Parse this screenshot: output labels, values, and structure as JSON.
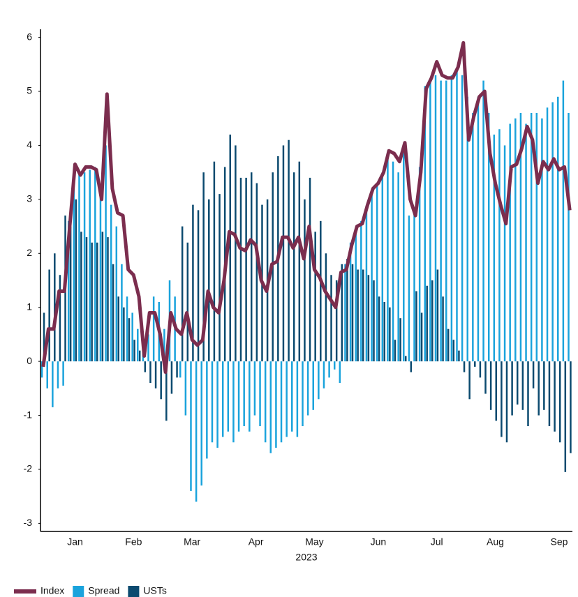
{
  "chart_data": {
    "type": "bar",
    "x_label": "2023",
    "categories": [
      null,
      null,
      null,
      null,
      null,
      null,
      "Jan",
      null,
      null,
      null,
      null,
      null,
      null,
      null,
      null,
      null,
      null,
      "Feb",
      null,
      null,
      null,
      null,
      null,
      null,
      null,
      null,
      null,
      null,
      "Mar",
      null,
      null,
      null,
      null,
      null,
      null,
      null,
      null,
      null,
      null,
      null,
      "Apr",
      null,
      null,
      null,
      null,
      null,
      null,
      null,
      null,
      null,
      null,
      "May",
      null,
      null,
      null,
      null,
      null,
      null,
      null,
      null,
      null,
      null,
      null,
      "Jun",
      null,
      null,
      null,
      null,
      null,
      null,
      null,
      null,
      null,
      null,
      "Jul",
      null,
      null,
      null,
      null,
      null,
      null,
      null,
      null,
      null,
      null,
      "Aug",
      null,
      null,
      null,
      null,
      null,
      null,
      null,
      null,
      null,
      null,
      null,
      "Sep",
      null,
      null
    ],
    "series": [
      {
        "name": "Index",
        "type": "line",
        "color": "#7b2d4e",
        "values": [
          -0.1,
          0.6,
          0.6,
          1.3,
          1.3,
          2.5,
          3.65,
          3.45,
          3.6,
          3.6,
          3.55,
          3.0,
          4.95,
          3.2,
          2.75,
          2.7,
          1.7,
          1.6,
          1.2,
          0.1,
          0.9,
          0.9,
          0.5,
          -0.2,
          0.9,
          0.6,
          0.5,
          0.9,
          0.4,
          0.3,
          0.4,
          1.3,
          1.0,
          0.9,
          1.5,
          2.4,
          2.35,
          2.1,
          2.05,
          2.25,
          2.15,
          1.5,
          1.3,
          1.8,
          1.85,
          2.3,
          2.3,
          2.1,
          2.3,
          1.9,
          2.5,
          1.7,
          1.55,
          1.3,
          1.15,
          1.0,
          1.65,
          1.7,
          2.15,
          2.5,
          2.55,
          2.9,
          3.2,
          3.3,
          3.5,
          3.9,
          3.85,
          3.7,
          4.05,
          3.0,
          2.7,
          3.5,
          5.05,
          5.25,
          5.55,
          5.3,
          5.25,
          5.25,
          5.45,
          5.9,
          4.1,
          4.55,
          4.9,
          5.0,
          3.85,
          3.3,
          2.9,
          2.55,
          3.6,
          3.65,
          3.95,
          4.35,
          4.1,
          3.3,
          3.7,
          3.55,
          3.75,
          3.55,
          3.6,
          2.8
        ]
      },
      {
        "name": "Spread",
        "type": "bar",
        "color": "#1aa3dc",
        "values": [
          -0.3,
          -0.5,
          -0.85,
          -0.5,
          -0.45,
          2.6,
          3.3,
          3.5,
          3.5,
          3.55,
          3.6,
          3.2,
          4.0,
          2.9,
          2.5,
          1.8,
          1.2,
          0.9,
          0.6,
          0.2,
          0.5,
          1.2,
          1.1,
          0.6,
          1.5,
          1.2,
          -0.3,
          -1.0,
          -2.4,
          -2.6,
          -2.3,
          -1.8,
          -1.5,
          -1.6,
          -1.4,
          -1.3,
          -1.5,
          -1.3,
          -1.2,
          -1.3,
          -1.0,
          -1.2,
          -1.5,
          -1.7,
          -1.6,
          -1.5,
          -1.4,
          -1.3,
          -1.4,
          -1.2,
          -1.0,
          -0.9,
          -0.7,
          -0.5,
          -0.3,
          -0.15,
          -0.4,
          1.8,
          2.2,
          2.4,
          2.6,
          2.8,
          3.1,
          3.3,
          3.5,
          3.8,
          3.7,
          3.5,
          4.0,
          2.7,
          2.8,
          3.6,
          5.1,
          5.2,
          5.3,
          5.2,
          5.2,
          5.3,
          5.4,
          5.3,
          4.9,
          4.6,
          4.9,
          5.2,
          4.6,
          4.2,
          4.3,
          4.0,
          4.4,
          4.5,
          4.6,
          4.4,
          4.6,
          4.6,
          4.5,
          4.7,
          4.8,
          4.9,
          5.2,
          4.6
        ]
      },
      {
        "name": "USTs",
        "type": "bar",
        "color": "#0b4a6f",
        "values": [
          0.9,
          1.7,
          2.0,
          1.6,
          2.7,
          2.5,
          3.0,
          2.4,
          2.3,
          2.2,
          2.2,
          2.4,
          2.3,
          1.8,
          1.2,
          1.0,
          0.8,
          0.4,
          0.2,
          -0.2,
          -0.4,
          -0.5,
          -0.7,
          -1.1,
          -0.6,
          -0.3,
          2.5,
          2.2,
          2.9,
          2.8,
          3.5,
          3.0,
          3.7,
          3.1,
          3.6,
          4.2,
          4.0,
          3.4,
          3.4,
          3.5,
          3.3,
          2.9,
          3.0,
          3.5,
          3.8,
          4.0,
          4.1,
          3.5,
          3.7,
          3.0,
          3.4,
          2.4,
          2.6,
          2.0,
          1.6,
          1.5,
          1.8,
          1.9,
          1.8,
          1.7,
          1.7,
          1.6,
          1.5,
          1.2,
          1.1,
          1.0,
          0.4,
          0.8,
          0.1,
          -0.2,
          1.3,
          0.9,
          1.4,
          1.5,
          1.7,
          1.2,
          0.6,
          0.4,
          0.2,
          -0.2,
          -0.7,
          -0.1,
          -0.3,
          -0.6,
          -0.9,
          -1.1,
          -1.4,
          -1.5,
          -1.0,
          -0.8,
          -0.9,
          -1.2,
          -0.5,
          -1.0,
          -0.9,
          -1.2,
          -1.3,
          -1.5,
          -2.05,
          -1.7
        ]
      }
    ],
    "ylim": [
      -3.15,
      6.15
    ],
    "yticks": [
      -3,
      -2,
      -1,
      0,
      1,
      2,
      3,
      4,
      5,
      6
    ],
    "grid": false,
    "legend": "bottom-left"
  }
}
